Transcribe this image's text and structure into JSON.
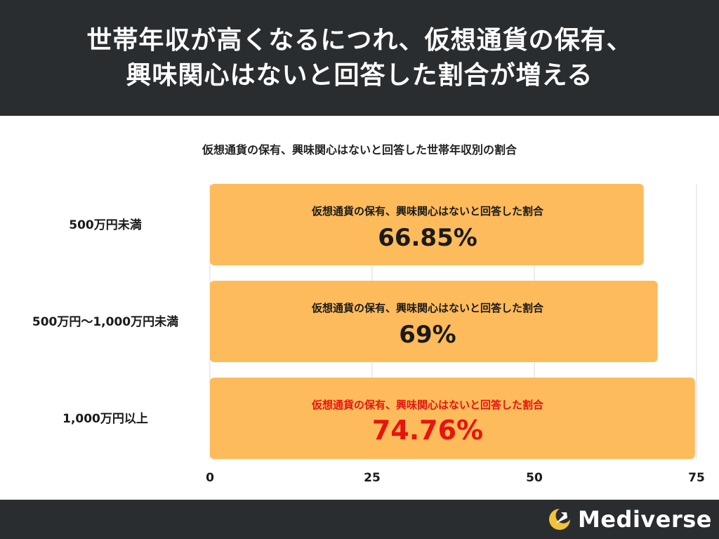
{
  "header": {
    "title_line1": "世帯年収が高くなるにつれ、仮想通貨の保有、",
    "title_line2": "興味関心はないと回答した割合が増える"
  },
  "footer": {
    "brand": "Mediverse",
    "logo_icon": "crescent-arrow-logo"
  },
  "colors": {
    "bar": "#fdbb5b",
    "header_bg": "#2a2d30",
    "highlight": "#e8140f",
    "text": "#1a1a1a",
    "grid": "#d8d8d8"
  },
  "chart_data": {
    "type": "bar",
    "orientation": "horizontal",
    "title": "仮想通貨の保有、興味関心はないと回答した世帯年収別の割合",
    "categories": [
      "500万円未満",
      "500万円〜1,000万円未満",
      "1,000万円以上"
    ],
    "values": [
      66.85,
      69,
      74.76
    ],
    "value_labels": [
      "66.85%",
      "69%",
      "74.76%"
    ],
    "bar_caption": "仮想通貨の保有、興味関心はないと回答した割合",
    "highlight_index": 2,
    "xlim": [
      0,
      75
    ],
    "xticks": [
      "0",
      "25",
      "50",
      "75"
    ],
    "grid": true,
    "legend": "none"
  }
}
